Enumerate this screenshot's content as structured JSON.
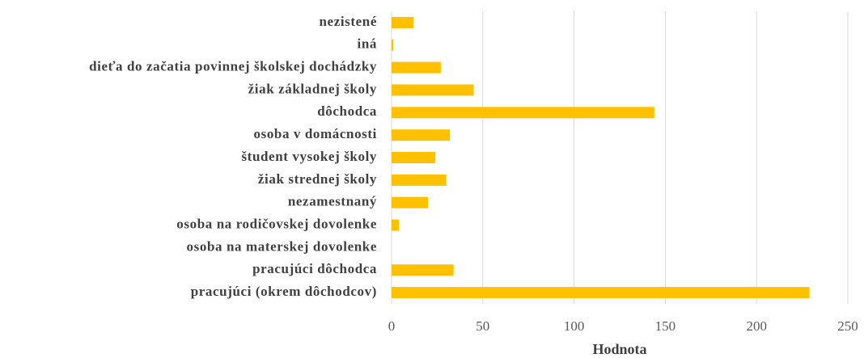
{
  "chart_data": {
    "type": "bar",
    "orientation": "horizontal",
    "categories": [
      "nezistené",
      "iná",
      "dieťa do začatia povinnej školskej dochádzky",
      "žiak základnej školy",
      "dôchodca",
      "osoba v domácnosti",
      "študent vysokej školy",
      "žiak strednej školy",
      "nezamestnaný",
      "osoba na rodičovskej dovolenke",
      "osoba na materskej dovolenke",
      "pracujúci dôchodca",
      "pracujúci (okrem dôchodcov)"
    ],
    "values": [
      12,
      1,
      27,
      45,
      144,
      32,
      24,
      30,
      20,
      4,
      0,
      34,
      229
    ],
    "color": "#FFC000",
    "x_label": "Hodnota",
    "xlim": [
      0,
      250
    ],
    "xticks": [
      0,
      50,
      100,
      150,
      200,
      250
    ],
    "grid": true
  }
}
